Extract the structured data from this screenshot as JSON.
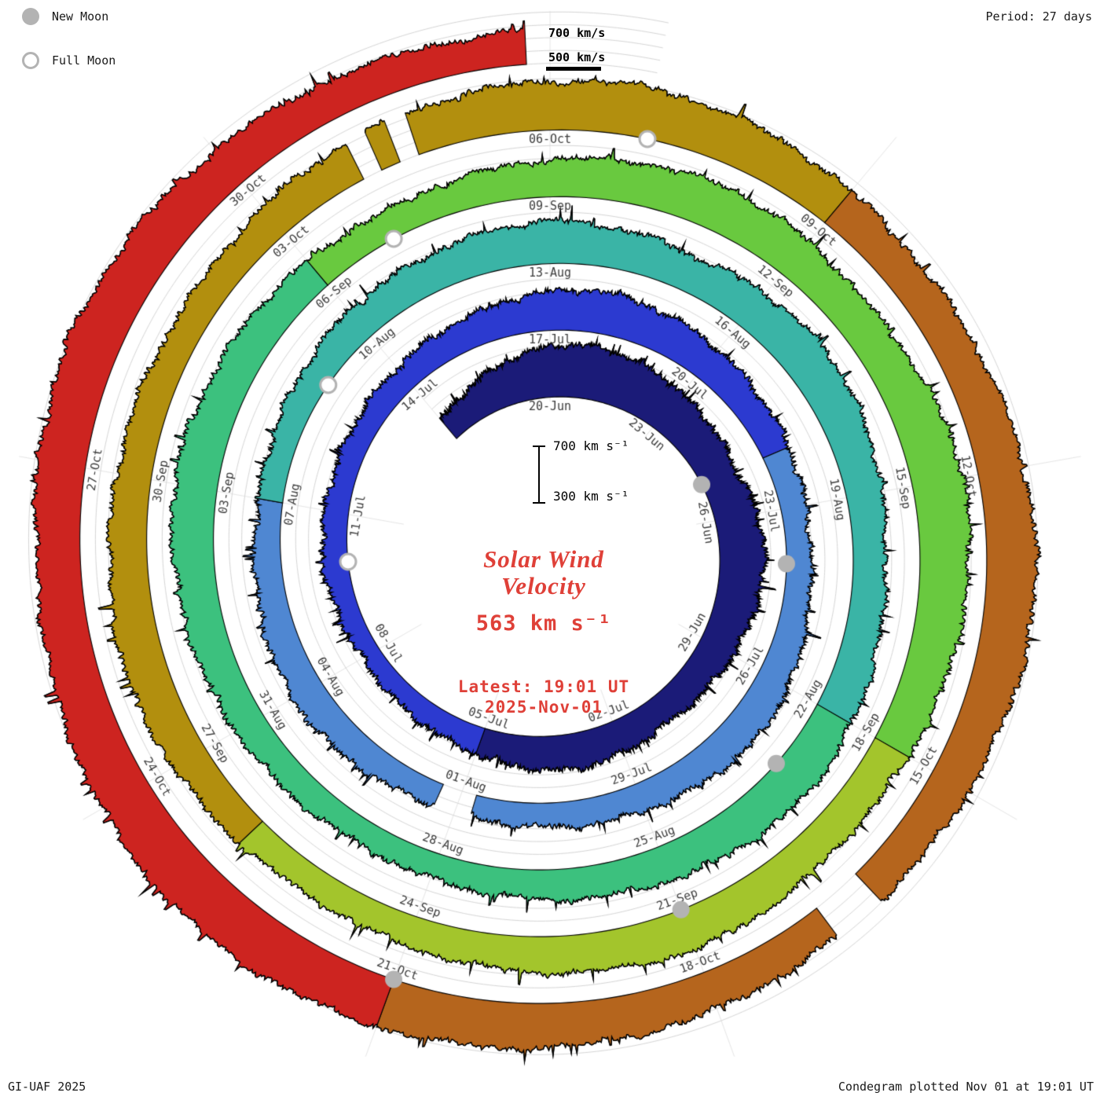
{
  "meta": {
    "credit": "GI-UAF 2025",
    "plotted": "Condegram plotted Nov 01 at 19:01 UT",
    "period_label": "Period: 27 days"
  },
  "legend": {
    "new_moon": "New Moon",
    "full_moon": "Full Moon"
  },
  "outer_scale": {
    "label_700": "700 km/s",
    "label_500": "500 km/s"
  },
  "center": {
    "scale_top": "700 km s⁻¹",
    "scale_bottom": "300 km s⁻¹",
    "title_line1": "Solar Wind",
    "title_line2": "Velocity",
    "current_value": "563 km s⁻¹",
    "latest_line1": "Latest: 19:01 UT",
    "latest_line2": "2025-Nov-01"
  },
  "colors": {
    "text_red": "#df4038",
    "label_gray": "#3c3c3c",
    "grid": "#d6d6d6",
    "spoke": "#e6e6e6",
    "moon_gray": "#b3b3b3"
  },
  "chart_data": {
    "type": "area",
    "layout": "polar-spiral-condegram",
    "title": "Solar Wind Velocity",
    "units": "km/s",
    "period_days": 27,
    "angle_epoch": "2025-06-20",
    "direction": "clockwise",
    "zero_angle": "top",
    "radial_baseline_kms": 300,
    "radial_top_kms": 700,
    "latest": {
      "value_kms": 563,
      "time_ut": "19:01",
      "date": "2025-11-01"
    },
    "series": {
      "start": "2025-06-17",
      "step_days": 1,
      "values": [
        480,
        560,
        640,
        700,
        720,
        690,
        650,
        620,
        590,
        640,
        660,
        620,
        580,
        550,
        530,
        560,
        580,
        550,
        510,
        480,
        460,
        450,
        470,
        500,
        490,
        480,
        490,
        500,
        530,
        560,
        610,
        630,
        600,
        570,
        540,
        520,
        500,
        490,
        520,
        560,
        580,
        550,
        520,
        500,
        480,
        470,
        500,
        540,
        560,
        540,
        510,
        490,
        500,
        530,
        560,
        580,
        610,
        640,
        610,
        580,
        620,
        650,
        620,
        580,
        550,
        580,
        610,
        640,
        610,
        580,
        550,
        520,
        500,
        490,
        520,
        550,
        580,
        610,
        640,
        610,
        580,
        550,
        520,
        550,
        590,
        630,
        660,
        630,
        600,
        660,
        710,
        680,
        640,
        600,
        570,
        600,
        630,
        600,
        570,
        540,
        520,
        550,
        590,
        630,
        600,
        570,
        550,
        530,
        570,
        610,
        650,
        680,
        700,
        660,
        620,
        590,
        620,
        660,
        690,
        660,
        620,
        590,
        570,
        600,
        630,
        660,
        690,
        720,
        740,
        710,
        670,
        640,
        670,
        700,
        670,
        630,
        590,
        563
      ]
    },
    "color_segments": [
      {
        "start": "2025-06-17",
        "color": "#1b1b78"
      },
      {
        "start": "2025-07-05",
        "color": "#2c3ad0"
      },
      {
        "start": "2025-07-22",
        "color": "#4f87d2"
      },
      {
        "start": "2025-08-07",
        "color": "#3ab4a6"
      },
      {
        "start": "2025-08-22",
        "color": "#3cc17e"
      },
      {
        "start": "2025-09-06",
        "color": "#69c93f"
      },
      {
        "start": "2025-09-18",
        "color": "#a3c52c"
      },
      {
        "start": "2025-09-26",
        "color": "#b28f0e"
      },
      {
        "start": "2025-10-09",
        "color": "#b5651d"
      },
      {
        "start": "2025-10-21",
        "color": "#cd2420"
      }
    ],
    "data_gaps": [
      {
        "start": "2025-07-31T18:00Z",
        "end": "2025-08-01T08:00Z"
      },
      {
        "start": "2025-10-04T00:00Z",
        "end": "2025-10-04T05:00Z"
      },
      {
        "start": "2025-10-04T10:00Z",
        "end": "2025-10-04T15:00Z"
      },
      {
        "start": "2025-10-16T06:00Z",
        "end": "2025-10-16T18:00Z"
      }
    ],
    "moons": {
      "new": [
        "2025-06-25",
        "2025-07-24",
        "2025-08-23",
        "2025-09-21",
        "2025-10-21"
      ],
      "full": [
        "2025-07-10",
        "2025-08-09",
        "2025-09-07",
        "2025-10-07"
      ]
    },
    "date_labels": {
      "start": "2025-06-20",
      "step_days": 3,
      "texts": [
        "20-Jun",
        "23-Jun",
        "26-Jun",
        "29-Jun",
        "02-Jul",
        "05-Jul",
        "08-Jul",
        "11-Jul",
        "14-Jul",
        "17-Jul",
        "20-Jul",
        "23-Jul",
        "26-Jul",
        "29-Jul",
        "01-Aug",
        "04-Aug",
        "07-Aug",
        "10-Aug",
        "13-Aug",
        "16-Aug",
        "19-Aug",
        "22-Aug",
        "25-Aug",
        "28-Aug",
        "31-Aug",
        "03-Sep",
        "06-Sep",
        "09-Sep",
        "12-Sep",
        "15-Sep",
        "18-Sep",
        "21-Sep",
        "24-Sep",
        "27-Sep",
        "30-Sep",
        "03-Oct",
        "06-Oct",
        "09-Oct",
        "12-Oct",
        "15-Oct",
        "18-Oct",
        "21-Oct",
        "24-Oct",
        "27-Oct",
        "30-Oct"
      ]
    },
    "legend_position": "top-left",
    "grid": true
  }
}
